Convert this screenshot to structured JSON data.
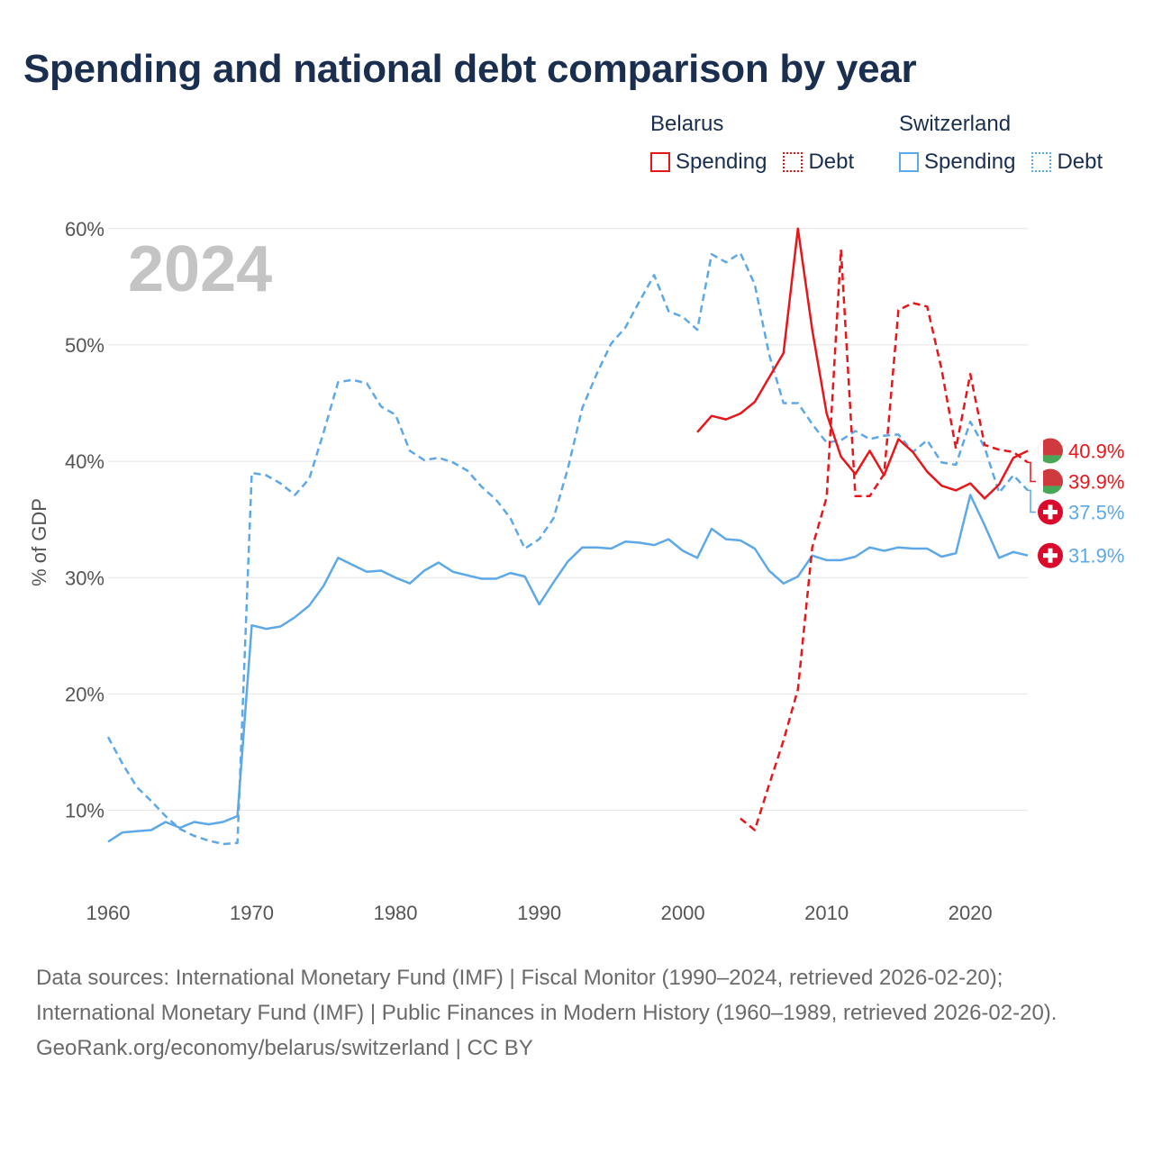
{
  "header": {
    "title": "Spending and national debt comparison by year"
  },
  "legend": {
    "groups": [
      {
        "country": "Belarus",
        "color": "#e8161b",
        "items": [
          {
            "label": "Spending",
            "style": "solid"
          },
          {
            "label": "Debt",
            "style": "dotted"
          }
        ]
      },
      {
        "country": "Switzerland",
        "color": "#5da8e8",
        "items": [
          {
            "label": "Spending",
            "style": "solid"
          },
          {
            "label": "Debt",
            "style": "dotted"
          }
        ]
      }
    ]
  },
  "chart_data": {
    "type": "line",
    "title": "Spending and national debt comparison by year",
    "year_label": "2024",
    "ylabel": "% of GDP",
    "xlabel": "",
    "xlim": [
      1960,
      2024
    ],
    "ylim": [
      3,
      63
    ],
    "x_ticks": [
      1960,
      1970,
      1980,
      1990,
      2000,
      2010,
      2020
    ],
    "y_ticks": [
      10,
      20,
      30,
      40,
      50,
      60
    ],
    "y_tick_format": "{v}%",
    "grid": true,
    "series": [
      {
        "name": "Switzerland Debt",
        "color": "#5da8e8",
        "dash": true,
        "flag": "switzerland",
        "end_label": "37.5%",
        "points": [
          [
            1960,
            16.3
          ],
          [
            1961,
            14
          ],
          [
            1962,
            12
          ],
          [
            1963,
            10.8
          ],
          [
            1964,
            9.5
          ],
          [
            1965,
            8.4
          ],
          [
            1966,
            7.8
          ],
          [
            1967,
            7.4
          ],
          [
            1968,
            7.1
          ],
          [
            1969,
            7.2
          ],
          [
            1970,
            39
          ],
          [
            1971,
            38.8
          ],
          [
            1972,
            38.1
          ],
          [
            1973,
            37.1
          ],
          [
            1974,
            38.5
          ],
          [
            1975,
            42.5
          ],
          [
            1976,
            46.8
          ],
          [
            1977,
            47
          ],
          [
            1978,
            46.7
          ],
          [
            1979,
            44.7
          ],
          [
            1980,
            44
          ],
          [
            1981,
            40.9
          ],
          [
            1982,
            40.1
          ],
          [
            1983,
            40.3
          ],
          [
            1984,
            39.9
          ],
          [
            1985,
            39.2
          ],
          [
            1986,
            37.8
          ],
          [
            1987,
            36.7
          ],
          [
            1988,
            35.1
          ],
          [
            1989,
            32.5
          ],
          [
            1990,
            33.3
          ],
          [
            1991,
            35.1
          ],
          [
            1992,
            39.4
          ],
          [
            1993,
            44.6
          ],
          [
            1994,
            47.5
          ],
          [
            1995,
            50.1
          ],
          [
            1996,
            51.5
          ],
          [
            1997,
            53.8
          ],
          [
            1998,
            56
          ],
          [
            1999,
            52.9
          ],
          [
            2000,
            52.4
          ],
          [
            2001,
            51.3
          ],
          [
            2002,
            57.8
          ],
          [
            2003,
            57.1
          ],
          [
            2004,
            57.9
          ],
          [
            2005,
            55.2
          ],
          [
            2006,
            49.2
          ],
          [
            2007,
            45
          ],
          [
            2008,
            45
          ],
          [
            2009,
            43.2
          ],
          [
            2010,
            41.6
          ],
          [
            2011,
            41.8
          ],
          [
            2012,
            42.6
          ],
          [
            2013,
            41.9
          ],
          [
            2014,
            42.2
          ],
          [
            2015,
            42.3
          ],
          [
            2016,
            40.8
          ],
          [
            2017,
            41.8
          ],
          [
            2018,
            39.9
          ],
          [
            2019,
            39.7
          ],
          [
            2020,
            43.4
          ],
          [
            2021,
            41.2
          ],
          [
            2022,
            37.3
          ],
          [
            2023,
            38.8
          ],
          [
            2024,
            37.5
          ]
        ]
      },
      {
        "name": "Switzerland Spending",
        "color": "#5da8e8",
        "dash": false,
        "flag": "switzerland",
        "end_label": "31.9%",
        "points": [
          [
            1960,
            7.3
          ],
          [
            1961,
            8.1
          ],
          [
            1962,
            8.2
          ],
          [
            1963,
            8.3
          ],
          [
            1964,
            9
          ],
          [
            1965,
            8.5
          ],
          [
            1966,
            9
          ],
          [
            1967,
            8.8
          ],
          [
            1968,
            9
          ],
          [
            1969,
            9.5
          ],
          [
            1970,
            25.9
          ],
          [
            1971,
            25.6
          ],
          [
            1972,
            25.8
          ],
          [
            1973,
            26.6
          ],
          [
            1974,
            27.6
          ],
          [
            1975,
            29.3
          ],
          [
            1976,
            31.7
          ],
          [
            1977,
            31.1
          ],
          [
            1978,
            30.5
          ],
          [
            1979,
            30.6
          ],
          [
            1980,
            30
          ],
          [
            1981,
            29.5
          ],
          [
            1982,
            30.6
          ],
          [
            1983,
            31.3
          ],
          [
            1984,
            30.5
          ],
          [
            1985,
            30.2
          ],
          [
            1986,
            29.9
          ],
          [
            1987,
            29.9
          ],
          [
            1988,
            30.4
          ],
          [
            1989,
            30.1
          ],
          [
            1990,
            27.7
          ],
          [
            1991,
            29.6
          ],
          [
            1992,
            31.4
          ],
          [
            1993,
            32.6
          ],
          [
            1994,
            32.6
          ],
          [
            1995,
            32.5
          ],
          [
            1996,
            33.1
          ],
          [
            1997,
            33
          ],
          [
            1998,
            32.8
          ],
          [
            1999,
            33.3
          ],
          [
            2000,
            32.3
          ],
          [
            2001,
            31.7
          ],
          [
            2002,
            34.2
          ],
          [
            2003,
            33.3
          ],
          [
            2004,
            33.2
          ],
          [
            2005,
            32.5
          ],
          [
            2006,
            30.6
          ],
          [
            2007,
            29.5
          ],
          [
            2008,
            30.1
          ],
          [
            2009,
            31.9
          ],
          [
            2010,
            31.5
          ],
          [
            2011,
            31.5
          ],
          [
            2012,
            31.8
          ],
          [
            2013,
            32.6
          ],
          [
            2014,
            32.3
          ],
          [
            2015,
            32.6
          ],
          [
            2016,
            32.5
          ],
          [
            2017,
            32.5
          ],
          [
            2018,
            31.8
          ],
          [
            2019,
            32.1
          ],
          [
            2020,
            37.1
          ],
          [
            2021,
            34.5
          ],
          [
            2022,
            31.7
          ],
          [
            2023,
            32.2
          ],
          [
            2024,
            31.9
          ]
        ]
      },
      {
        "name": "Belarus Spending",
        "color": "#e8161b",
        "dash": false,
        "flag": "belarus",
        "end_label": "40.9%",
        "points": [
          [
            2001,
            42.5
          ],
          [
            2002,
            43.9
          ],
          [
            2003,
            43.6
          ],
          [
            2004,
            44.1
          ],
          [
            2005,
            45.1
          ],
          [
            2006,
            47.2
          ],
          [
            2007,
            49.3
          ],
          [
            2008,
            60
          ],
          [
            2009,
            51.3
          ],
          [
            2010,
            44.1
          ],
          [
            2011,
            40.4
          ],
          [
            2012,
            38.9
          ],
          [
            2013,
            40.9
          ],
          [
            2014,
            38.8
          ],
          [
            2015,
            41.9
          ],
          [
            2016,
            40.8
          ],
          [
            2017,
            39.1
          ],
          [
            2018,
            37.9
          ],
          [
            2019,
            37.5
          ],
          [
            2020,
            38.1
          ],
          [
            2021,
            36.8
          ],
          [
            2022,
            38
          ],
          [
            2023,
            40.3
          ],
          [
            2024,
            40.9
          ]
        ]
      },
      {
        "name": "Belarus Debt",
        "color": "#e8161b",
        "dash": true,
        "flag": "belarus",
        "end_label": "39.9%",
        "points": [
          [
            2004,
            9.3
          ],
          [
            2005,
            8.3
          ],
          [
            2006,
            12.2
          ],
          [
            2007,
            16
          ],
          [
            2008,
            20.4
          ],
          [
            2009,
            32.6
          ],
          [
            2010,
            36.9
          ],
          [
            2011,
            58.2
          ],
          [
            2012,
            37
          ],
          [
            2013,
            37
          ],
          [
            2014,
            38.9
          ],
          [
            2015,
            53
          ],
          [
            2016,
            53.6
          ],
          [
            2017,
            53.3
          ],
          [
            2018,
            47.9
          ],
          [
            2019,
            41.1
          ],
          [
            2020,
            47.5
          ],
          [
            2021,
            41.4
          ],
          [
            2022,
            41
          ],
          [
            2023,
            40.8
          ],
          [
            2024,
            39.9
          ]
        ]
      }
    ]
  },
  "footer": {
    "sources": "Data sources: International Monetary Fund (IMF) | Fiscal Monitor (1990–2024, retrieved 2026-02-20); International Monetary Fund (IMF) | Public Finances in Modern History (1960–1989, retrieved 2026-02-20).",
    "credit": "GeoRank.org/economy/belarus/switzerland | CC BY"
  }
}
